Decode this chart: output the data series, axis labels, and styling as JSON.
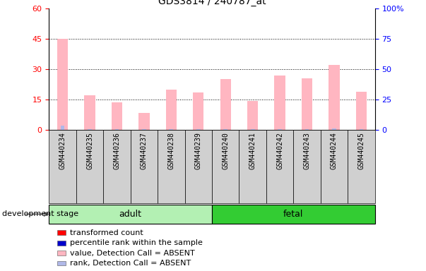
{
  "title": "GDS3814 / 240787_at",
  "samples": [
    "GSM440234",
    "GSM440235",
    "GSM440236",
    "GSM440237",
    "GSM440238",
    "GSM440239",
    "GSM440240",
    "GSM440241",
    "GSM440242",
    "GSM440243",
    "GSM440244",
    "GSM440245"
  ],
  "absent_value": [
    45.0,
    17.0,
    13.5,
    8.5,
    20.0,
    18.5,
    25.0,
    14.5,
    27.0,
    25.5,
    32.0,
    19.0
  ],
  "absent_rank_pct": [
    3.5,
    0.5,
    0.5,
    0.5,
    0.5,
    0.5,
    0.5,
    0.5,
    1.0,
    0.5,
    1.5,
    0.5
  ],
  "groups": [
    {
      "name": "adult",
      "start": 0,
      "end": 6,
      "color": "#b3f0b3"
    },
    {
      "name": "fetal",
      "start": 6,
      "end": 12,
      "color": "#33cc33"
    }
  ],
  "ylim_left": [
    0,
    60
  ],
  "ylim_right": [
    0,
    100
  ],
  "yticks_left": [
    0,
    15,
    30,
    45,
    60
  ],
  "yticks_right": [
    0,
    25,
    50,
    75,
    100
  ],
  "ytick_labels_left": [
    "0",
    "15",
    "30",
    "45",
    "60"
  ],
  "ytick_labels_right": [
    "0",
    "25",
    "50",
    "75",
    "100%"
  ],
  "bar_width": 0.4,
  "rank_bar_width": 0.15,
  "absent_value_color": "#ffb6c1",
  "absent_rank_color": "#b0b8e8",
  "legend_items": [
    {
      "label": "transformed count",
      "color": "#ff0000"
    },
    {
      "label": "percentile rank within the sample",
      "color": "#0000cc"
    },
    {
      "label": "value, Detection Call = ABSENT",
      "color": "#ffb6c1"
    },
    {
      "label": "rank, Detection Call = ABSENT",
      "color": "#b0b8e8"
    }
  ],
  "development_stage_label": "development stage"
}
